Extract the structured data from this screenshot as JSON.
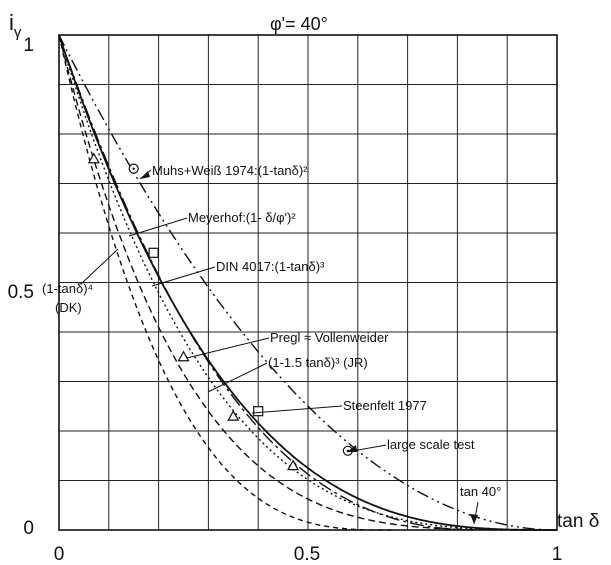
{
  "chart_data": {
    "type": "line",
    "title": "φ'= 40°",
    "ylabel": "iγ",
    "ylabel_main": "i",
    "ylabel_sub": "γ",
    "xlabel": "tan δ",
    "xlim": [
      0,
      1
    ],
    "ylim": [
      0,
      1
    ],
    "grid": true,
    "x_ticks": [
      "0",
      "0.5",
      "1"
    ],
    "y_ticks": [
      "0",
      "0.5",
      "1"
    ],
    "series": [
      {
        "name": "Muhs+Weiß 1974:(1-tanδ)²",
        "style": "dash-dot-dot",
        "formula": "(1-t)^2"
      },
      {
        "name": "Meyerhof:(1- δ/φ')²",
        "style": "dash-dot",
        "formula": "(1-atan(t)/40deg)^2"
      },
      {
        "name": "DIN 4017:(1-tanδ)³",
        "style": "solid",
        "formula": "(1-t)^3"
      },
      {
        "name": "(1-tanδ)⁴ (DK)",
        "style": "dashed",
        "formula": "(1-t)^4"
      },
      {
        "name": "(1-1.5 tanδ)³ (JR)",
        "style": "short-dash",
        "formula": "(1-1.5t)^3"
      },
      {
        "name": "Pregl ≈ Vollenweider",
        "style": "dotted",
        "formula": "approx (1-t)^3.3"
      }
    ],
    "test_points": {
      "squares": [
        [
          0.19,
          0.56
        ],
        [
          0.4,
          0.24
        ]
      ],
      "triangles": [
        [
          0.07,
          0.75
        ],
        [
          0.25,
          0.35
        ],
        [
          0.35,
          0.23
        ],
        [
          0.47,
          0.13
        ]
      ],
      "circles": [
        [
          0.15,
          0.73
        ],
        [
          0.58,
          0.16
        ]
      ]
    },
    "annotations": {
      "muhs": "Muhs+Weiß 1974:(1-tanδ)²",
      "meyerhof": "Meyerhof:(1- δ/φ')²",
      "din": "DIN 4017:(1-tanδ)³",
      "dk_line1": "(1-tanδ)⁴",
      "dk_line2": "(DK)",
      "pregl": "Pregl ≈ Vollenweider",
      "jr": "(1-1.5 tanδ)³ (JR)",
      "steenfelt": "Steenfelt 1977",
      "large_scale": "large scale  test",
      "tan40": "tan 40°"
    }
  }
}
